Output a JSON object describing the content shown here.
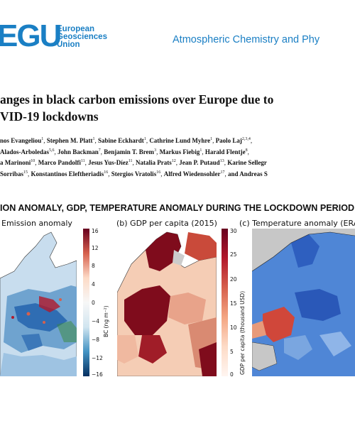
{
  "header": {
    "logo_mark": "EGU",
    "logo_lines": [
      "European",
      "Geosciences",
      "Union"
    ],
    "journal": "Atmospheric Chemistry and Phy"
  },
  "title": {
    "line1": "anges in black carbon emissions over Europe due to",
    "line2": "VID-19 lockdowns"
  },
  "authors": {
    "line1": [
      {
        "name": "nos Evangeliou",
        "sup": "1"
      },
      {
        "name": "Stephen M. Platt",
        "sup": "1"
      },
      {
        "name": "Sabine Eckhardt",
        "sup": "1"
      },
      {
        "name": "Cathrine Lund Myhre",
        "sup": "1"
      },
      {
        "name": "Paolo Laj",
        "sup": "2,3,4"
      }
    ],
    "line2": [
      {
        "name": "Alados-Arboledas",
        "sup": "5,6"
      },
      {
        "name": "John Backman",
        "sup": "7"
      },
      {
        "name": "Benjamin T. Brem",
        "sup": "3"
      },
      {
        "name": "Markus Fiebig",
        "sup": "1"
      },
      {
        "name": "Harald Flentje",
        "sup": "8"
      }
    ],
    "line3": [
      {
        "name": "a Marinoni",
        "sup": "10"
      },
      {
        "name": "Marco Pandolfi",
        "sup": "11"
      },
      {
        "name": "Jesus Yus-Díez",
        "sup": "11"
      },
      {
        "name": "Natalia Prats",
        "sup": "12"
      },
      {
        "name": "Jean P. Putaud",
        "sup": "13"
      },
      {
        "name": "Karine Sellegr",
        "sup": ""
      }
    ],
    "line4": [
      {
        "name": "Sorribas",
        "sup": "15"
      },
      {
        "name": "Konstantinos Eleftheriadis",
        "sup": "16"
      },
      {
        "name": "Stergios Vratolis",
        "sup": "16"
      },
      {
        "name": "Alfred Wiedensohler",
        "sup": "17"
      },
      {
        "name": "and Andreas S",
        "sup": ""
      }
    ]
  },
  "figure": {
    "header": "ION ANOMALY, GDP, TEMPERATURE ANOMALY DURING THE LOCKDOWN PERIOD",
    "panels": [
      {
        "label": "Emission anomaly"
      },
      {
        "label": "(b) GDP per capita (2015)"
      },
      {
        "label": "(c) Temperature anomaly (ERA"
      }
    ],
    "colorbar_a": {
      "title": "BC (ng m⁻²)",
      "ticks": [
        "16",
        "12",
        "8",
        "4",
        "0",
        "−4",
        "−8",
        "−12",
        "−16"
      ]
    },
    "colorbar_b": {
      "title": "GDP per capita (thousand USD)",
      "ticks": [
        "30",
        "25",
        "20",
        "15",
        "10",
        "5",
        "0"
      ]
    }
  },
  "colors": {
    "accent": "#1a7fc4",
    "sea_a": "#ffffff",
    "sea_c": "#c7c7c7",
    "blue": "#2f6db3",
    "red": "#b2182b",
    "dark_red": "#7f0c1c"
  }
}
